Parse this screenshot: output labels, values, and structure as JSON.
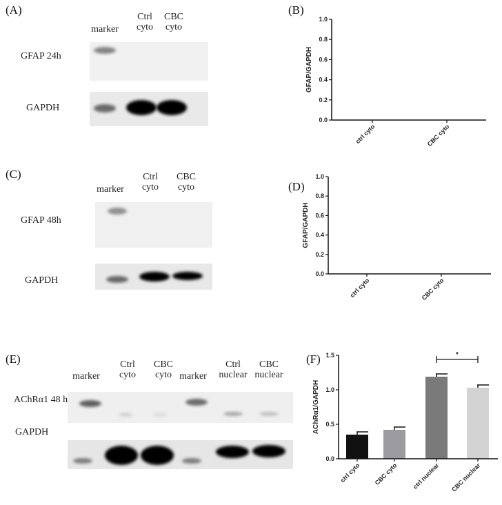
{
  "blots": [
    {
      "panel": "(A)",
      "lanes": [
        "marker",
        "Ctrl\ncyto",
        "CBC\ncyto"
      ],
      "rows": [
        "GFAP 24h",
        "GAPDH"
      ]
    },
    {
      "panel": "(C)",
      "lanes": [
        "marker",
        "Ctrl\ncyto",
        "CBC\ncyto"
      ],
      "rows": [
        "GFAP 48h",
        "GAPDH"
      ]
    },
    {
      "panel": "(E)",
      "lanes": [
        "marker",
        "Ctrl\ncyto",
        "CBC\ncyto",
        "marker",
        "Ctrl\nnuclear",
        "CBC\nnuclear"
      ],
      "rows": [
        "AChRα1 48 h",
        "GAPDH"
      ]
    }
  ],
  "chart_data": [
    {
      "panel": "(B)",
      "type": "bar",
      "categories": [
        "ctrl cyto",
        "CBC cyto"
      ],
      "values": [
        null,
        null
      ],
      "ylabel": "GFAP/GAPDH",
      "ylim": [
        0,
        1.0
      ],
      "yticks": [
        "0.0",
        "0.2",
        "0.4",
        "0.6",
        "0.8",
        "1.0"
      ],
      "grid": false
    },
    {
      "panel": "(D)",
      "type": "bar",
      "categories": [
        "ctrl cyto",
        "CBC cyto"
      ],
      "values": [
        null,
        null
      ],
      "ylabel": "GFAP/GAPDH",
      "ylim": [
        0,
        1.0
      ],
      "yticks": [
        "0.0",
        "0.2",
        "0.4",
        "0.6",
        "0.8",
        "1.0"
      ],
      "grid": false
    },
    {
      "panel": "(F)",
      "type": "bar",
      "categories": [
        "ctrl cyto",
        "CBC cyto",
        "ctrl nuclear",
        "CBC nuclear"
      ],
      "values": [
        0.35,
        0.42,
        1.19,
        1.03
      ],
      "errors": [
        0.04,
        0.04,
        0.04,
        0.04
      ],
      "colors": [
        "#111111",
        "#9b9ba0",
        "#7a7a7a",
        "#d3d3d3"
      ],
      "ylabel": "AChRα1/GAPDH",
      "ylim": [
        0,
        1.5
      ],
      "yticks": [
        "0.0",
        "0.5",
        "1.0",
        "1.5"
      ],
      "grid": false,
      "annotations": [
        {
          "text": "*",
          "between": [
            "ctrl nuclear",
            "CBC nuclear"
          ]
        }
      ]
    }
  ]
}
